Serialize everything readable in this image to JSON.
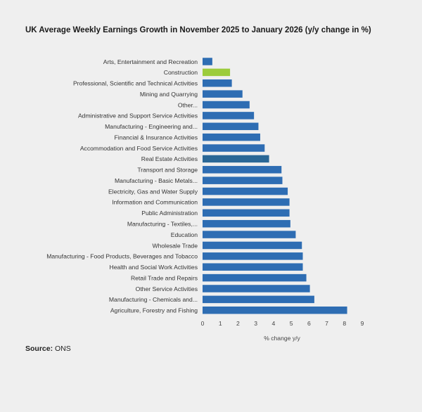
{
  "title": "UK Average Weekly Earnings Growth in November 2025 to January 2026 (y/y change in %)",
  "source_label": "Source:",
  "source_value": "ONS",
  "colors": {
    "bar": "#2e6db3",
    "highlight_construction": "#9ccc3c",
    "highlight_real_estate": "#2a6796",
    "background": "#efefef",
    "axis_text": "#444444"
  },
  "chart_data": {
    "type": "bar",
    "orientation": "horizontal",
    "title": "UK Average Weekly Earnings Growth in November 2025 to January 2026 (y/y change in %)",
    "xlabel": "% change y/y",
    "ylabel": "",
    "xlim": [
      0,
      9
    ],
    "x_ticks": [
      "0",
      "1",
      "2",
      "3",
      "4",
      "5",
      "6",
      "7",
      "8",
      "9"
    ],
    "grid": false,
    "categories": [
      "Arts, Entertainment and Recreation",
      "Construction",
      "Professional, Scientific and Technical Activities",
      "Mining and Quarrying",
      "Other...",
      "Administrative and Support Service Activities",
      "Manufacturing - Engineering and...",
      "Financial & Insurance Activities",
      "Accommodation and Food Service Activities",
      "Real Estate Activities",
      "Transport and Storage",
      "Manufacturing - Basic Metals...",
      "Electricity, Gas and Water Supply",
      "Information and Communication",
      "Public Administration",
      "Manufacturing - Textiles,...",
      "Education",
      "Wholesale Trade",
      "Manufacturing - Food Products, Beverages and Tobacco",
      "Health and Social Work Activities",
      "Retail Trade and Repairs",
      "Other Service Activities",
      "Manufacturing - Chemicals and...",
      "Agriculture, Forestry and Fishing"
    ],
    "values": [
      0.55,
      1.55,
      1.65,
      2.25,
      2.65,
      2.9,
      3.15,
      3.25,
      3.5,
      3.75,
      4.45,
      4.5,
      4.8,
      4.9,
      4.9,
      4.95,
      5.25,
      5.6,
      5.65,
      5.65,
      5.85,
      6.05,
      6.3,
      8.15
    ],
    "highlights": {
      "Construction": "#9ccc3c",
      "Real Estate Activities": "#2a6796"
    }
  }
}
